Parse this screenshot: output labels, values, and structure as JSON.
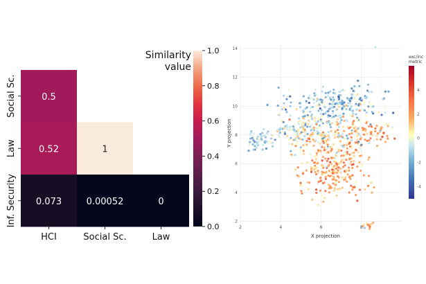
{
  "chart_data": [
    {
      "type": "heatmap",
      "mask": "lower-triangle",
      "rows": [
        "Social Sc.",
        "Law",
        "Inf. Security"
      ],
      "columns": [
        "HCI",
        "Social Sc.",
        "Law"
      ],
      "values": [
        [
          0.5,
          null,
          null
        ],
        [
          0.52,
          1,
          null
        ],
        [
          0.073,
          0.00052,
          0
        ]
      ],
      "value_labels": [
        [
          "0.5",
          "",
          ""
        ],
        [
          "0.52",
          "1",
          ""
        ],
        [
          "0.073",
          "0.00052",
          "0"
        ]
      ],
      "colorbar": {
        "title_lines": [
          "Similarity",
          "value"
        ],
        "range": [
          0,
          1
        ],
        "ticks": [
          0.0,
          0.2,
          0.4,
          0.6,
          0.8,
          1.0
        ],
        "tick_labels": [
          "0.0",
          "0.2",
          "0.4",
          "0.6",
          "0.8",
          "1.0"
        ],
        "colormap": "rocket"
      }
    },
    {
      "type": "scatter",
      "xlabel": "X projection",
      "ylabel": "Y projection",
      "xlim": [
        2,
        10
      ],
      "ylim": [
        1.3,
        14.2
      ],
      "xticks": [
        2,
        4,
        6,
        8
      ],
      "yticks": [
        2,
        4,
        6,
        8,
        10,
        12,
        14
      ],
      "grid": true,
      "legend": {
        "title_lines": [
          "exc/inc",
          "metric"
        ],
        "range": [
          -5,
          6
        ],
        "ticks": [
          -4,
          -2,
          0,
          2,
          4
        ],
        "colormap": "RdYlBu_r",
        "position": "right"
      },
      "point_count_note": "roughly 1000 points, color = exc/inc metric"
    }
  ]
}
